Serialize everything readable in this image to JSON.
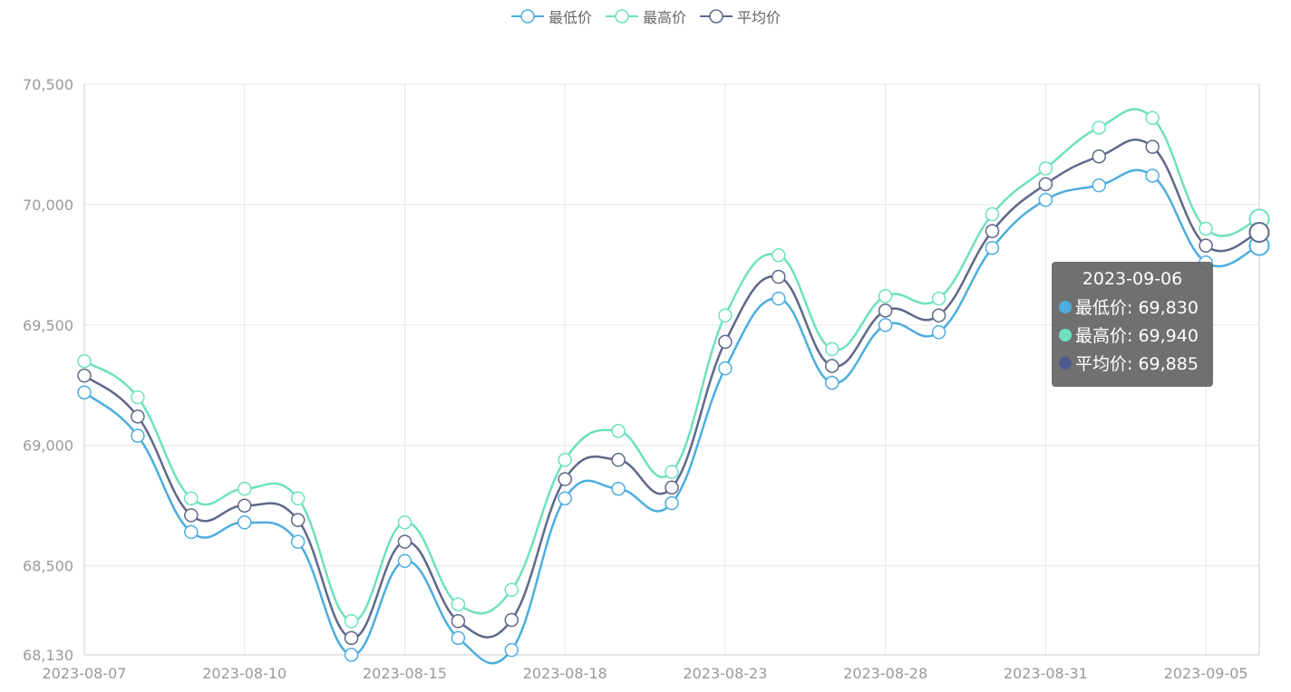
{
  "colors": {
    "low": "#4DADDE",
    "high": "#6EE0C0",
    "avg": "#5E6889",
    "avg_dot": "#4E5A8E",
    "grid": "#e6e6e6",
    "axis_label": "#999999"
  },
  "legend": [
    {
      "name": "最低价",
      "color": "#4DADDE"
    },
    {
      "name": "最高价",
      "color": "#6EE0C0"
    },
    {
      "name": "平均价",
      "color": "#5E6889"
    }
  ],
  "tooltip": {
    "title": "2023-09-06",
    "rows": [
      {
        "label": "最低价: 69,830",
        "color": "#4DADDE"
      },
      {
        "label": "最高价: 69,940",
        "color": "#6EE0C0"
      },
      {
        "label": "平均价: 69,885",
        "color": "#4E5A8E"
      }
    ]
  },
  "chart_data": {
    "type": "line",
    "smooth": true,
    "xlabel": "",
    "ylabel": "",
    "x": [
      "2023-08-07",
      "2023-08-08",
      "2023-08-09",
      "2023-08-10",
      "2023-08-11",
      "2023-08-14",
      "2023-08-15",
      "2023-08-16",
      "2023-08-17",
      "2023-08-18",
      "2023-08-21",
      "2023-08-22",
      "2023-08-23",
      "2023-08-24",
      "2023-08-25",
      "2023-08-28",
      "2023-08-29",
      "2023-08-30",
      "2023-08-31",
      "2023-09-01",
      "2023-09-04",
      "2023-09-05",
      "2023-09-06"
    ],
    "x_tick_labels": [
      "2023-08-07",
      "2023-08-10",
      "2023-08-15",
      "2023-08-18",
      "2023-08-23",
      "2023-08-28",
      "2023-08-31",
      "2023-09-05"
    ],
    "x_tick_every": 3,
    "y_ticks": [
      "68,130",
      "68,500",
      "69,000",
      "69,500",
      "70,000",
      "70,500"
    ],
    "ylim": [
      68130,
      70500
    ],
    "grid": true,
    "legend_position": "top-center",
    "series": [
      {
        "name": "最低价",
        "values": [
          69220,
          69040,
          68640,
          68680,
          68600,
          68130,
          68520,
          68200,
          68150,
          68780,
          68820,
          68760,
          69320,
          69610,
          69260,
          69500,
          69470,
          69820,
          70020,
          70080,
          70120,
          69760,
          69830
        ]
      },
      {
        "name": "最高价",
        "values": [
          69350,
          69200,
          68780,
          68820,
          68780,
          68270,
          68680,
          68340,
          68400,
          68940,
          69060,
          68890,
          69540,
          69790,
          69400,
          69620,
          69610,
          69960,
          70150,
          70320,
          70360,
          69900,
          69940
        ]
      },
      {
        "name": "平均价",
        "values": [
          69290,
          69120,
          68710,
          68750,
          68690,
          68200,
          68600,
          68270,
          68275,
          68860,
          68940,
          68825,
          69430,
          69700,
          69330,
          69560,
          69540,
          69890,
          70085,
          70200,
          70240,
          69830,
          69885
        ]
      }
    ]
  }
}
